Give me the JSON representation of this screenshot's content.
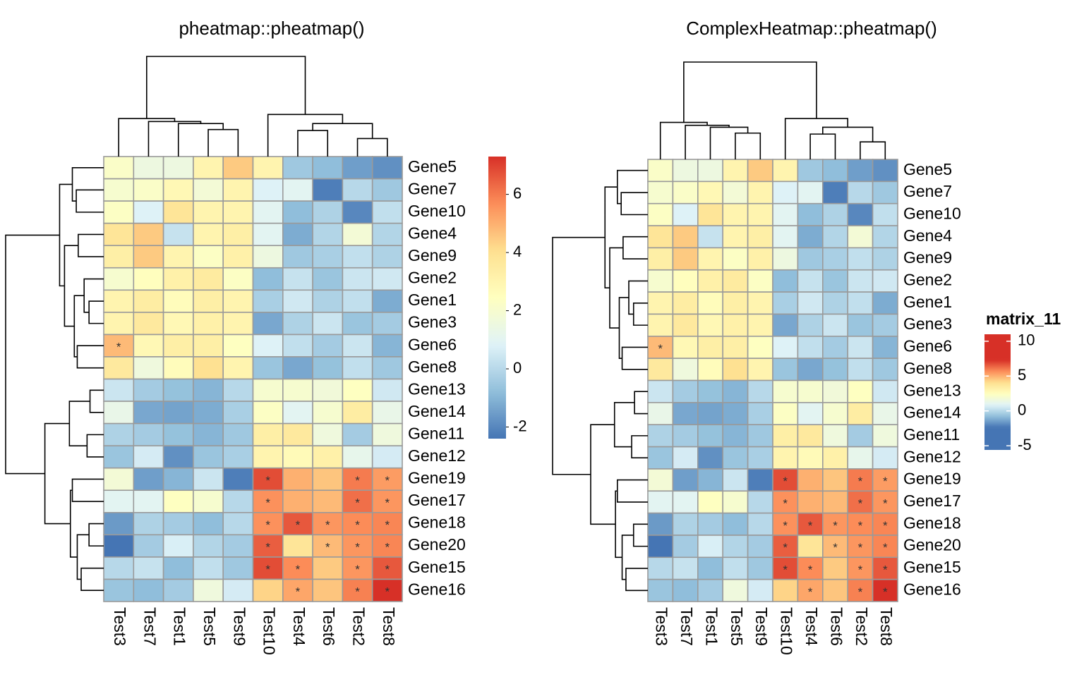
{
  "chart_data": [
    {
      "type": "heatmap",
      "title": "pheatmap::pheatmap()",
      "rows": [
        "Gene5",
        "Gene7",
        "Gene10",
        "Gene4",
        "Gene9",
        "Gene2",
        "Gene1",
        "Gene3",
        "Gene6",
        "Gene8",
        "Gene13",
        "Gene14",
        "Gene11",
        "Gene12",
        "Gene19",
        "Gene17",
        "Gene18",
        "Gene20",
        "Gene15",
        "Gene16"
      ],
      "columns": [
        "Test3",
        "Test7",
        "Test1",
        "Test5",
        "Test9",
        "Test10",
        "Test4",
        "Test6",
        "Test2",
        "Test8"
      ],
      "values": [
        [
          2.2,
          1.5,
          1.5,
          3,
          4.5,
          3,
          -0.5,
          -0.8,
          -1.5,
          -1.8
        ],
        [
          2,
          2.2,
          2.8,
          1.8,
          3,
          0.8,
          1,
          -2.2,
          0,
          -0.5
        ],
        [
          2.3,
          0.8,
          3.8,
          3,
          3,
          1,
          -0.8,
          -0.2,
          -2,
          0.2
        ],
        [
          3.8,
          4.5,
          0.3,
          3,
          3.3,
          1,
          -1.2,
          -0.1,
          1.8,
          -0.1
        ],
        [
          3.3,
          4.5,
          3,
          2.3,
          3.2,
          1.5,
          -0.5,
          -0.3,
          0.2,
          -0.2
        ],
        [
          2,
          2.5,
          3.2,
          3.5,
          2.3,
          -0.8,
          0.3,
          -0.6,
          0.4,
          0.5
        ],
        [
          3,
          3.4,
          2.6,
          3.3,
          3,
          -0.3,
          0.5,
          -0.2,
          0.2,
          -1.2
        ],
        [
          3,
          3.6,
          2.8,
          3.2,
          3,
          -1.3,
          -0.2,
          0.4,
          -0.6,
          -0.4
        ],
        [
          4.8,
          2.8,
          3.3,
          3.3,
          2.4,
          0.8,
          0.2,
          -0.4,
          0.4,
          -1
        ],
        [
          3.6,
          1.6,
          2.6,
          4,
          3,
          -0.6,
          -1.3,
          -0.7,
          0.2,
          -0.5
        ],
        [
          0.4,
          -0.4,
          -0.7,
          -1,
          0,
          2,
          2,
          1.7,
          2.4,
          0.5
        ],
        [
          1.3,
          -1.3,
          -1.4,
          -1.2,
          -0.3,
          2.3,
          1,
          2,
          3.4,
          1.3
        ],
        [
          -0.2,
          -0.4,
          -0.7,
          -1,
          -0.5,
          3.3,
          3.6,
          1.6,
          -0.4,
          1.6
        ],
        [
          -0.6,
          0.6,
          -1.8,
          -0.6,
          -0.3,
          3,
          2.7,
          3.2,
          1.2,
          0.6
        ],
        [
          1.8,
          -1.5,
          -1,
          0.4,
          -2.2,
          6.8,
          5,
          4.6,
          6,
          5.4
        ],
        [
          1,
          1,
          2.4,
          2,
          0,
          5.6,
          5,
          4.8,
          6.2,
          5.5
        ],
        [
          -1.6,
          -0.2,
          -0.4,
          -0.8,
          0,
          5.6,
          6.6,
          5.5,
          5.7,
          5.8
        ],
        [
          -2.4,
          -0.4,
          0.7,
          -0.1,
          -0.4,
          6.5,
          3.8,
          4.8,
          5.5,
          5.8
        ],
        [
          0,
          0.3,
          -0.8,
          0.2,
          -0.5,
          6.8,
          5.7,
          4.5,
          5.5,
          6.6
        ],
        [
          -0.6,
          -0.8,
          -0.4,
          1.6,
          0.6,
          4.3,
          5.2,
          4.6,
          5.9,
          7.3
        ]
      ],
      "cell_labels": [
        [
          null,
          null,
          null,
          null,
          null,
          null,
          null,
          null,
          null,
          null
        ],
        [
          null,
          null,
          null,
          null,
          null,
          null,
          null,
          null,
          null,
          null
        ],
        [
          null,
          null,
          null,
          null,
          null,
          null,
          null,
          null,
          null,
          null
        ],
        [
          null,
          null,
          null,
          null,
          null,
          null,
          null,
          null,
          null,
          null
        ],
        [
          null,
          null,
          null,
          null,
          null,
          null,
          null,
          null,
          null,
          null
        ],
        [
          null,
          null,
          null,
          null,
          null,
          null,
          null,
          null,
          null,
          null
        ],
        [
          null,
          null,
          null,
          null,
          null,
          null,
          null,
          null,
          null,
          null
        ],
        [
          null,
          null,
          null,
          null,
          null,
          null,
          null,
          null,
          null,
          null
        ],
        [
          "*",
          null,
          null,
          null,
          null,
          null,
          null,
          null,
          null,
          null
        ],
        [
          null,
          null,
          null,
          null,
          null,
          null,
          null,
          null,
          null,
          null
        ],
        [
          null,
          null,
          null,
          null,
          null,
          null,
          null,
          null,
          null,
          null
        ],
        [
          null,
          null,
          null,
          null,
          null,
          null,
          null,
          null,
          null,
          null
        ],
        [
          null,
          null,
          null,
          null,
          null,
          null,
          null,
          null,
          null,
          null
        ],
        [
          null,
          null,
          null,
          null,
          null,
          null,
          null,
          null,
          null,
          null
        ],
        [
          null,
          null,
          null,
          null,
          null,
          "*",
          null,
          null,
          "*",
          "*"
        ],
        [
          null,
          null,
          null,
          null,
          null,
          "*",
          null,
          null,
          "*",
          "*"
        ],
        [
          null,
          null,
          null,
          null,
          null,
          "*",
          "*",
          "*",
          "*",
          "*"
        ],
        [
          null,
          null,
          null,
          null,
          null,
          "*",
          null,
          "*",
          "*",
          "*"
        ],
        [
          null,
          null,
          null,
          null,
          null,
          "*",
          "*",
          null,
          "*",
          "*"
        ],
        [
          null,
          null,
          null,
          null,
          null,
          null,
          "*",
          null,
          "*",
          "*"
        ]
      ],
      "colors": [
        "#4575b4",
        "#91bfdb",
        "#e0f3f8",
        "#ffffbf",
        "#fee090",
        "#fc8d59",
        "#d73027"
      ],
      "legend_lim": [
        -2.4,
        7.3
      ],
      "legend_ticks": [
        -2,
        0,
        2,
        4,
        6
      ]
    },
    {
      "type": "heatmap",
      "title": "ComplexHeatmap::pheatmap()",
      "rows": [
        "Gene5",
        "Gene7",
        "Gene10",
        "Gene4",
        "Gene9",
        "Gene2",
        "Gene1",
        "Gene3",
        "Gene6",
        "Gene8",
        "Gene13",
        "Gene14",
        "Gene11",
        "Gene12",
        "Gene19",
        "Gene17",
        "Gene18",
        "Gene20",
        "Gene15",
        "Gene16"
      ],
      "columns": [
        "Test3",
        "Test7",
        "Test1",
        "Test5",
        "Test9",
        "Test10",
        "Test4",
        "Test6",
        "Test2",
        "Test8"
      ],
      "values": [
        [
          2.2,
          1.5,
          1.5,
          3,
          4.5,
          3,
          -0.5,
          -0.8,
          -1.5,
          -1.8
        ],
        [
          2,
          2.2,
          2.8,
          1.8,
          3,
          0.8,
          1,
          -2.2,
          0,
          -0.5
        ],
        [
          2.3,
          0.8,
          3.8,
          3,
          3,
          1,
          -0.8,
          -0.2,
          -2,
          0.2
        ],
        [
          3.8,
          4.5,
          0.3,
          3,
          3.3,
          1,
          -1.2,
          -0.1,
          1.8,
          -0.1
        ],
        [
          3.3,
          4.5,
          3,
          2.3,
          3.2,
          1.5,
          -0.5,
          -0.3,
          0.2,
          -0.2
        ],
        [
          2,
          2.5,
          3.2,
          3.5,
          2.3,
          -0.8,
          0.3,
          -0.6,
          0.4,
          0.5
        ],
        [
          3,
          3.4,
          2.6,
          3.3,
          3,
          -0.3,
          0.5,
          -0.2,
          0.2,
          -1.2
        ],
        [
          3,
          3.6,
          2.8,
          3.2,
          3,
          -1.3,
          -0.2,
          0.4,
          -0.6,
          -0.4
        ],
        [
          4.8,
          2.8,
          3.3,
          3.3,
          2.4,
          0.8,
          0.2,
          -0.4,
          0.4,
          -1
        ],
        [
          3.6,
          1.6,
          2.6,
          4,
          3,
          -0.6,
          -1.3,
          -0.7,
          0.2,
          -0.5
        ],
        [
          0.4,
          -0.4,
          -0.7,
          -1,
          0,
          2,
          2,
          1.7,
          2.4,
          0.5
        ],
        [
          1.3,
          -1.3,
          -1.4,
          -1.2,
          -0.3,
          2.3,
          1,
          2,
          3.4,
          1.3
        ],
        [
          -0.2,
          -0.4,
          -0.7,
          -1,
          -0.5,
          3.3,
          3.6,
          1.6,
          -0.4,
          1.6
        ],
        [
          -0.6,
          0.6,
          -1.8,
          -0.6,
          -0.3,
          3,
          2.7,
          3.2,
          1.2,
          0.6
        ],
        [
          1.8,
          -1.5,
          -1,
          0.4,
          -2.2,
          6.8,
          5,
          4.6,
          6,
          5.4
        ],
        [
          1,
          1,
          2.4,
          2,
          0,
          5.6,
          5,
          4.8,
          6.2,
          5.5
        ],
        [
          -1.6,
          -0.2,
          -0.4,
          -0.8,
          0,
          5.6,
          6.6,
          5.5,
          5.7,
          5.8
        ],
        [
          -2.4,
          -0.4,
          0.7,
          -0.1,
          -0.4,
          6.5,
          3.8,
          4.8,
          5.5,
          5.8
        ],
        [
          0,
          0.3,
          -0.8,
          0.2,
          -0.5,
          6.8,
          5.7,
          4.5,
          5.5,
          6.6
        ],
        [
          -0.6,
          -0.8,
          -0.4,
          1.6,
          0.6,
          4.3,
          5.2,
          4.6,
          5.9,
          7.3
        ]
      ],
      "cell_labels": [
        [
          null,
          null,
          null,
          null,
          null,
          null,
          null,
          null,
          null,
          null
        ],
        [
          null,
          null,
          null,
          null,
          null,
          null,
          null,
          null,
          null,
          null
        ],
        [
          null,
          null,
          null,
          null,
          null,
          null,
          null,
          null,
          null,
          null
        ],
        [
          null,
          null,
          null,
          null,
          null,
          null,
          null,
          null,
          null,
          null
        ],
        [
          null,
          null,
          null,
          null,
          null,
          null,
          null,
          null,
          null,
          null
        ],
        [
          null,
          null,
          null,
          null,
          null,
          null,
          null,
          null,
          null,
          null
        ],
        [
          null,
          null,
          null,
          null,
          null,
          null,
          null,
          null,
          null,
          null
        ],
        [
          null,
          null,
          null,
          null,
          null,
          null,
          null,
          null,
          null,
          null
        ],
        [
          "*",
          null,
          null,
          null,
          null,
          null,
          null,
          null,
          null,
          null
        ],
        [
          null,
          null,
          null,
          null,
          null,
          null,
          null,
          null,
          null,
          null
        ],
        [
          null,
          null,
          null,
          null,
          null,
          null,
          null,
          null,
          null,
          null
        ],
        [
          null,
          null,
          null,
          null,
          null,
          null,
          null,
          null,
          null,
          null
        ],
        [
          null,
          null,
          null,
          null,
          null,
          null,
          null,
          null,
          null,
          null
        ],
        [
          null,
          null,
          null,
          null,
          null,
          null,
          null,
          null,
          null,
          null
        ],
        [
          null,
          null,
          null,
          null,
          null,
          "*",
          null,
          null,
          "*",
          "*"
        ],
        [
          null,
          null,
          null,
          null,
          null,
          "*",
          null,
          null,
          "*",
          "*"
        ],
        [
          null,
          null,
          null,
          null,
          null,
          "*",
          "*",
          "*",
          "*",
          "*"
        ],
        [
          null,
          null,
          null,
          null,
          null,
          "*",
          null,
          "*",
          "*",
          "*"
        ],
        [
          null,
          null,
          null,
          null,
          null,
          "*",
          "*",
          null,
          "*",
          "*"
        ],
        [
          null,
          null,
          null,
          null,
          null,
          null,
          "*",
          null,
          "*",
          "*"
        ]
      ],
      "colors": [
        "#4575b4",
        "#91bfdb",
        "#e0f3f8",
        "#ffffbf",
        "#fee090",
        "#fc8d59",
        "#d73027"
      ],
      "legend_title": "matrix_11",
      "legend_lim": [
        -5.6,
        11
      ],
      "legend_ticks": [
        -5,
        0,
        5,
        10
      ]
    }
  ]
}
